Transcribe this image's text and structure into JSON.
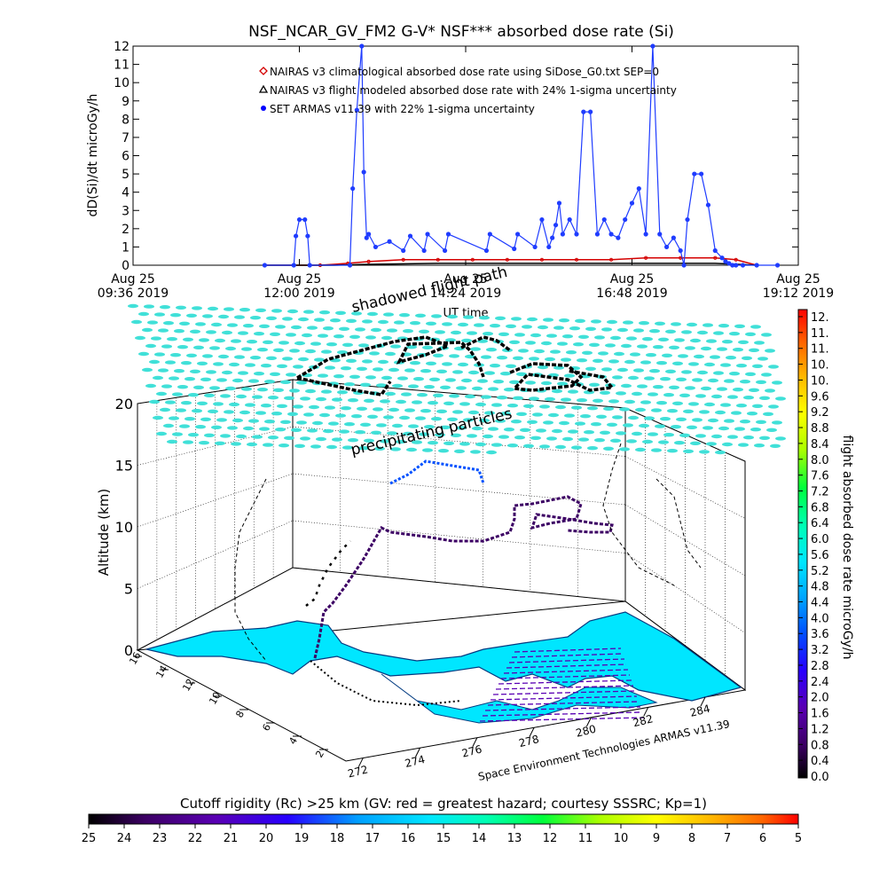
{
  "chart_data": [
    {
      "type": "line",
      "title": "NSF_NCAR_GV_FM2 G-V* NSF*** absorbed dose rate (Si)",
      "xlabel": "UT time",
      "ylabel": "dD(Si)/dt microGy/h",
      "ylim": [
        0,
        12
      ],
      "yticks": [
        "0",
        "1",
        "2",
        "3",
        "4",
        "5",
        "6",
        "7",
        "8",
        "9",
        "10",
        "11",
        "12"
      ],
      "xticks": [
        {
          "line1": "Aug 25",
          "line2": "09:36 2019"
        },
        {
          "line1": "Aug 25",
          "line2": "12:00 2019"
        },
        {
          "line1": "Aug 25",
          "line2": "14:24 2019"
        },
        {
          "line1": "Aug 25",
          "line2": "16:48 2019"
        },
        {
          "line1": "Aug 25",
          "line2": "19:12 2019"
        }
      ],
      "xlim_hours": [
        9.6,
        19.2
      ],
      "legend": [
        {
          "marker": "diamond",
          "color": "#d40000",
          "label": "NAIRAS v3 climatological absorbed dose rate using SiDose_G0.txt SEP=0"
        },
        {
          "marker": "triangle",
          "color": "#000000",
          "label": "NAIRAS v3 flight modeled absorbed dose rate with 24% 1-sigma uncertainty"
        },
        {
          "marker": "circle",
          "color": "#0000ff",
          "label": "SET ARMAS v11.39 with 22% 1-sigma uncertainty"
        }
      ],
      "series": [
        {
          "name": "NAIRAS v3 climatological absorbed dose rate using SiDose_G0.txt SEP=0",
          "color": "#d40000",
          "x": [
            11.5,
            12.3,
            12.7,
            13.0,
            13.5,
            14.0,
            14.5,
            15.0,
            15.5,
            16.0,
            16.5,
            17.0,
            17.5,
            18.0,
            18.3,
            18.6
          ],
          "values": [
            0,
            0,
            0.1,
            0.2,
            0.3,
            0.3,
            0.3,
            0.3,
            0.3,
            0.3,
            0.3,
            0.4,
            0.4,
            0.4,
            0.3,
            0
          ]
        },
        {
          "name": "NAIRAS v3 flight modeled absorbed dose rate with 24% 1-sigma uncertainty",
          "color": "#000000",
          "x": [
            11.5,
            12.5,
            13.0,
            14.0,
            15.0,
            16.0,
            17.0,
            18.0,
            18.6
          ],
          "values": [
            0,
            0,
            0.05,
            0.1,
            0.1,
            0.1,
            0.1,
            0.1,
            0
          ]
        },
        {
          "name": "SET ARMAS v11.39 with 22% 1-sigma uncertainty",
          "color": "#1f3cff",
          "x": [
            11.5,
            11.92,
            11.95,
            12.0,
            12.08,
            12.12,
            12.15,
            12.73,
            12.77,
            12.83,
            12.9,
            12.93,
            12.97,
            13.0,
            13.1,
            13.3,
            13.5,
            13.6,
            13.8,
            13.85,
            14.1,
            14.15,
            14.7,
            14.75,
            15.1,
            15.15,
            15.4,
            15.5,
            15.6,
            15.65,
            15.7,
            15.75,
            15.8,
            15.9,
            16.0,
            16.1,
            16.2,
            16.3,
            16.4,
            16.5,
            16.6,
            16.7,
            16.8,
            16.9,
            17.0,
            17.1,
            17.2,
            17.3,
            17.4,
            17.5,
            17.55,
            17.6,
            17.7,
            17.8,
            17.9,
            18.0,
            18.1,
            18.15,
            18.2,
            18.25,
            18.3,
            18.4,
            18.6,
            18.9
          ],
          "values": [
            0,
            0,
            1.6,
            2.5,
            2.5,
            1.6,
            0,
            0,
            4.2,
            8.5,
            12,
            5.1,
            1.5,
            1.7,
            1.0,
            1.3,
            0.8,
            1.6,
            0.8,
            1.7,
            0.8,
            1.7,
            0.8,
            1.7,
            0.9,
            1.7,
            1.0,
            2.5,
            1.0,
            1.5,
            2.2,
            3.4,
            1.7,
            2.5,
            1.7,
            8.4,
            8.4,
            1.7,
            2.5,
            1.7,
            1.5,
            2.5,
            3.4,
            4.2,
            1.7,
            12,
            1.7,
            1.0,
            1.5,
            0.8,
            0,
            2.5,
            5.0,
            5.0,
            3.3,
            0.8,
            0.4,
            0.2,
            0.1,
            0,
            0,
            0,
            0,
            0
          ]
        }
      ]
    },
    {
      "type": "scatter",
      "subtype": "3d-flight-track",
      "zlabel": "Altitude (km)",
      "zlim": [
        0,
        20
      ],
      "zticks": [
        "0",
        "5",
        "10",
        "15",
        "20"
      ],
      "xaxis_ticks": [
        "272",
        "274",
        "276",
        "278",
        "280",
        "282",
        "284"
      ],
      "yaxis_ticks": [
        "2",
        "4",
        "6",
        "8",
        "10",
        "12",
        "14",
        "16"
      ],
      "annotations": [
        "shadowed flight path",
        "precipitating particles"
      ],
      "credit": "Space Environment Technologies ARMAS v11.39",
      "colorbar": {
        "label": "flight absorbed dose rate microGy/h",
        "ticks": [
          "12.",
          "11.",
          "11.",
          "10.",
          "10.",
          "9.6",
          "9.2",
          "8.8",
          "8.4",
          "8.0",
          "7.6",
          "7.2",
          "6.8",
          "6.4",
          "6.0",
          "5.6",
          "5.2",
          "4.8",
          "4.4",
          "4.0",
          "3.6",
          "3.2",
          "2.8",
          "2.4",
          "2.0",
          "1.6",
          "1.2",
          "0.8",
          "0.4",
          "0.0"
        ],
        "colors": [
          "#000000",
          "#3c0064",
          "#5a00b4",
          "#2800ff",
          "#0050ff",
          "#00a0ff",
          "#00e6ff",
          "#00ffb4",
          "#00ff3c",
          "#aaff00",
          "#ffff00",
          "#ffb400",
          "#ff6400",
          "#ff0000"
        ]
      },
      "rigidity_bar": {
        "label": "Cutoff rigidity (Rc) >25 km (GV: red = greatest hazard; courtesy SSSRC; Kp=1)",
        "ticks": [
          "25",
          "24",
          "23",
          "22",
          "21",
          "20",
          "19",
          "18",
          "17",
          "16",
          "15",
          "14",
          "13",
          "12",
          "11",
          "10",
          "9",
          "8",
          "7",
          "6",
          "5"
        ]
      }
    }
  ]
}
